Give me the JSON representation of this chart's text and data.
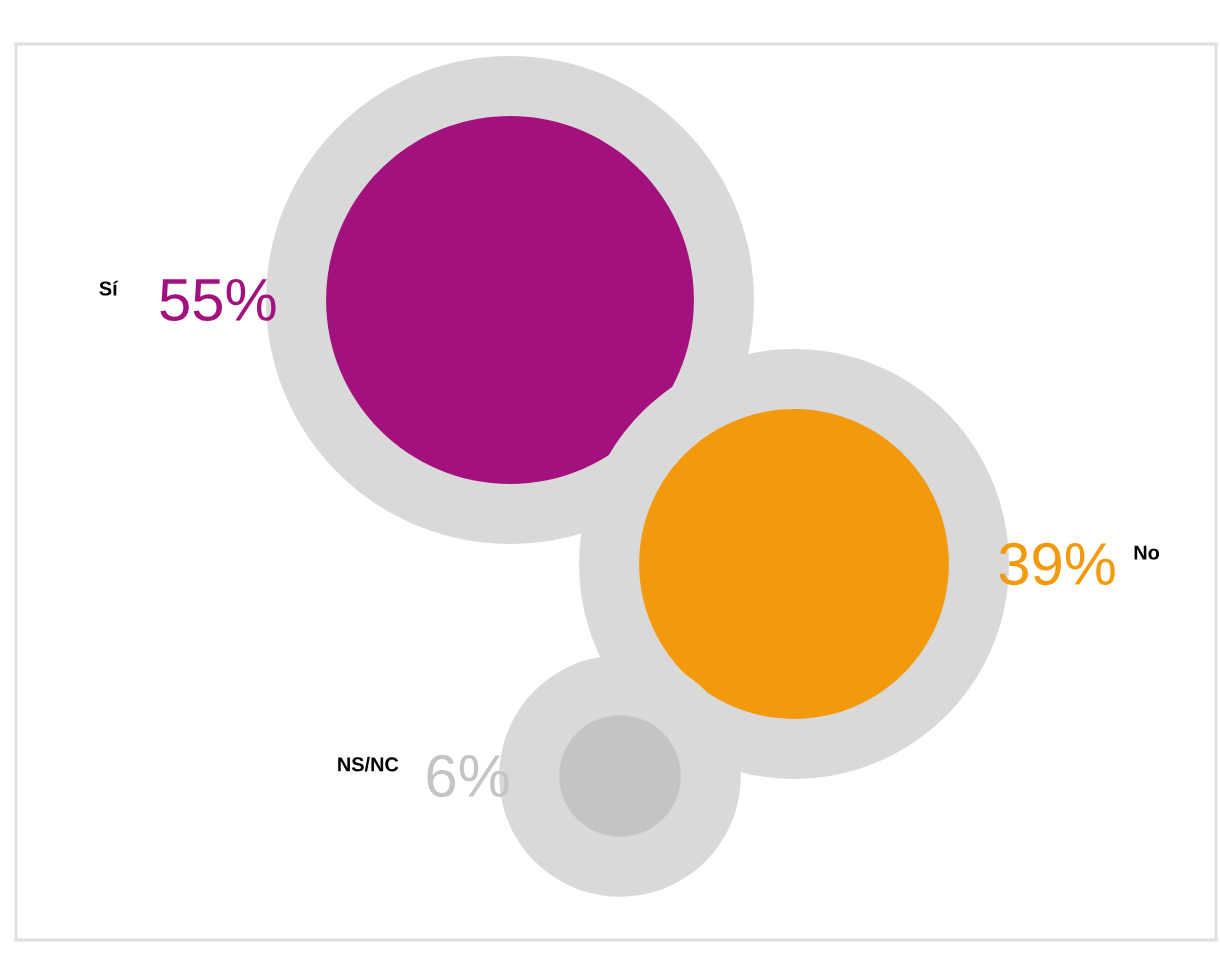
{
  "chart_data": {
    "type": "other",
    "categories": [
      "Sí",
      "No",
      "NS/NC"
    ],
    "values": [
      55,
      39,
      6
    ],
    "colors": [
      "#a3117e",
      "#f29a0c",
      "#c4c4c4"
    ],
    "value_labels": [
      "55%",
      "39%",
      "6%"
    ]
  }
}
